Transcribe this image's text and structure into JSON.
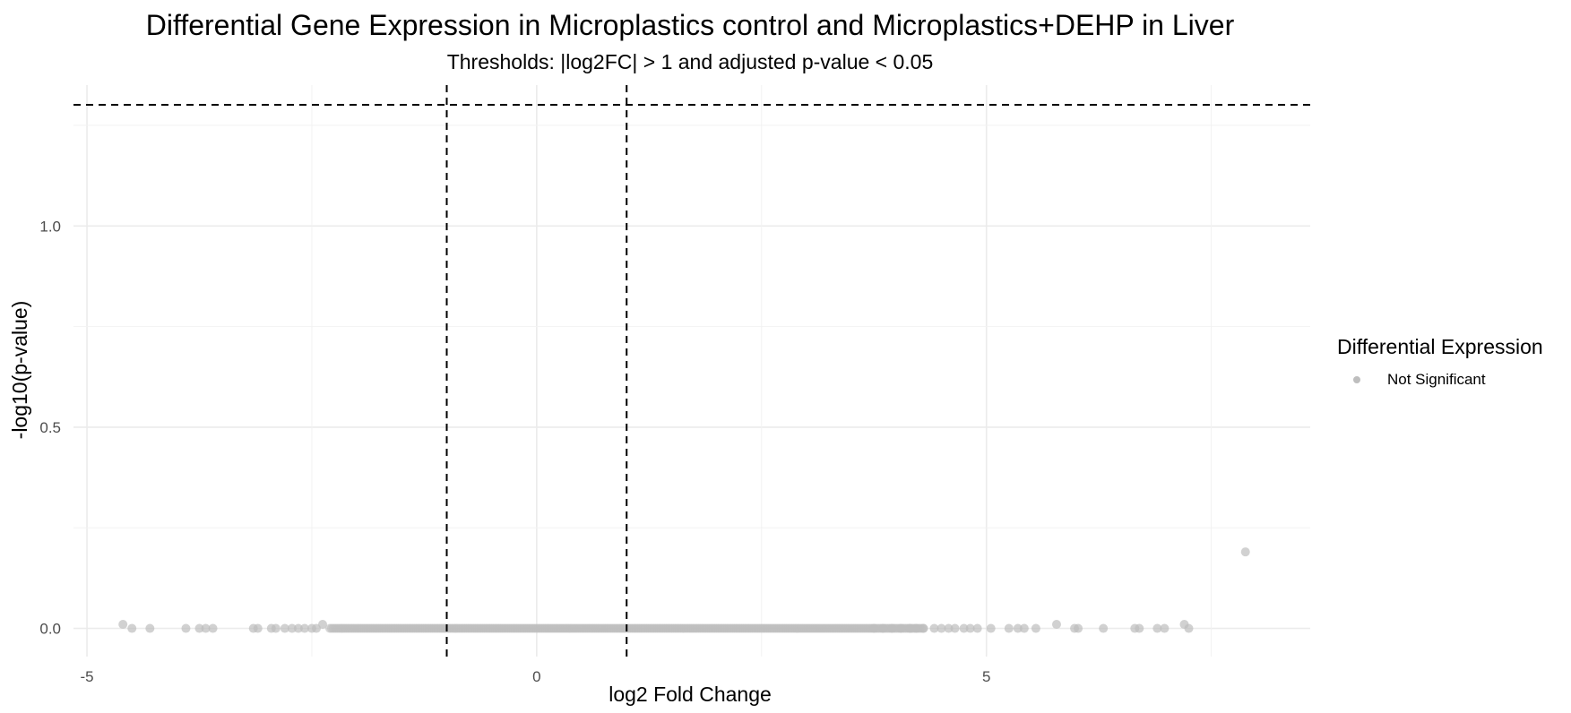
{
  "chart_data": {
    "type": "scatter",
    "title": "Differential Gene Expression in Microplastics control and Microplastics+DEHP in Liver",
    "subtitle": "Thresholds: |log2FC| > 1 and adjusted p-value < 0.05",
    "xlabel": "log2 Fold Change",
    "ylabel": "-log10(p-value)",
    "xlim": [
      -5.15,
      8.6
    ],
    "ylim": [
      -0.07,
      1.35
    ],
    "x_ticks": [
      -5,
      0,
      5
    ],
    "x_tick_labels": [
      "-5",
      "0",
      "5"
    ],
    "y_ticks": [
      0.0,
      0.5,
      1.0
    ],
    "y_tick_labels": [
      "0.0",
      "0.5",
      "1.0"
    ],
    "grid": true,
    "threshold_lines": {
      "x": [
        -1,
        1
      ],
      "y": [
        1.301
      ]
    },
    "legend": {
      "title": "Differential Expression",
      "position": "right",
      "entries": [
        {
          "label": "Not Significant",
          "color": "#bebebe"
        }
      ]
    },
    "series": [
      {
        "name": "Not Significant",
        "color": "#bebebe",
        "dense_x_range": [
          -2.3,
          4.3
        ],
        "dense_y": 0.0,
        "points": [
          {
            "x": -4.6,
            "y": 0.01
          },
          {
            "x": -4.5,
            "y": 0.0
          },
          {
            "x": -4.3,
            "y": 0.0
          },
          {
            "x": -3.9,
            "y": 0.0
          },
          {
            "x": -3.75,
            "y": 0.0
          },
          {
            "x": -3.68,
            "y": 0.0
          },
          {
            "x": -3.6,
            "y": 0.0
          },
          {
            "x": -3.15,
            "y": 0.0
          },
          {
            "x": -3.1,
            "y": 0.0
          },
          {
            "x": -2.95,
            "y": 0.0
          },
          {
            "x": -2.9,
            "y": 0.0
          },
          {
            "x": -2.8,
            "y": 0.0
          },
          {
            "x": -2.72,
            "y": 0.0
          },
          {
            "x": -2.65,
            "y": 0.0
          },
          {
            "x": -2.58,
            "y": 0.0
          },
          {
            "x": -2.5,
            "y": 0.0
          },
          {
            "x": -2.45,
            "y": 0.0
          },
          {
            "x": -2.38,
            "y": 0.01
          },
          {
            "x": 3.75,
            "y": 0.0
          },
          {
            "x": 3.85,
            "y": 0.0
          },
          {
            "x": 3.95,
            "y": 0.0
          },
          {
            "x": 4.05,
            "y": 0.0
          },
          {
            "x": 4.15,
            "y": 0.0
          },
          {
            "x": 4.22,
            "y": 0.0
          },
          {
            "x": 4.3,
            "y": 0.0
          },
          {
            "x": 4.42,
            "y": 0.0
          },
          {
            "x": 4.5,
            "y": 0.0
          },
          {
            "x": 4.58,
            "y": 0.0
          },
          {
            "x": 4.65,
            "y": 0.0
          },
          {
            "x": 4.75,
            "y": 0.0
          },
          {
            "x": 4.82,
            "y": 0.0
          },
          {
            "x": 4.9,
            "y": 0.0
          },
          {
            "x": 5.05,
            "y": 0.0
          },
          {
            "x": 5.25,
            "y": 0.0
          },
          {
            "x": 5.35,
            "y": 0.0
          },
          {
            "x": 5.42,
            "y": 0.0
          },
          {
            "x": 5.55,
            "y": 0.0
          },
          {
            "x": 5.78,
            "y": 0.01
          },
          {
            "x": 5.98,
            "y": 0.0
          },
          {
            "x": 6.02,
            "y": 0.0
          },
          {
            "x": 6.3,
            "y": 0.0
          },
          {
            "x": 6.65,
            "y": 0.0
          },
          {
            "x": 6.7,
            "y": 0.0
          },
          {
            "x": 6.9,
            "y": 0.0
          },
          {
            "x": 6.98,
            "y": 0.0
          },
          {
            "x": 7.2,
            "y": 0.01
          },
          {
            "x": 7.25,
            "y": 0.0
          },
          {
            "x": 7.88,
            "y": 0.19
          }
        ]
      }
    ]
  }
}
